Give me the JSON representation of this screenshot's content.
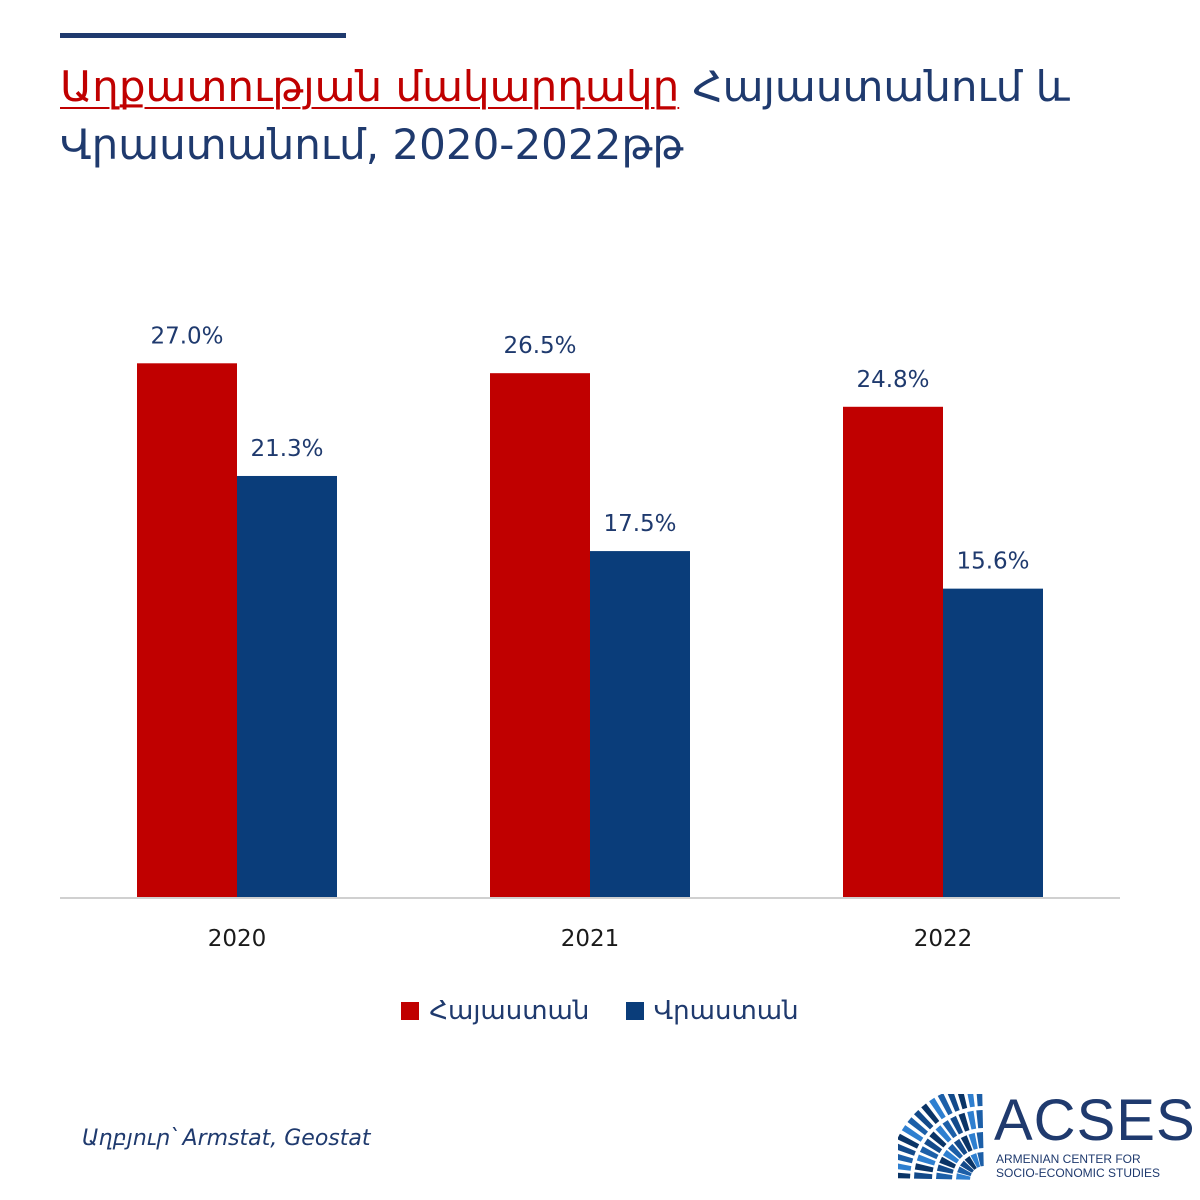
{
  "header": {
    "title_highlight": "Աղքատության մակարդակը",
    "title_rest": " Հայաստանում և Վրաստանում, 2020-2022թթ"
  },
  "colors": {
    "armenia": "#c00000",
    "georgia": "#0a3d7a",
    "text": "#1f3a6e"
  },
  "chart_data": {
    "type": "bar",
    "categories": [
      "2020",
      "2021",
      "2022"
    ],
    "series": [
      {
        "name": "Հայաստան",
        "values": [
          27.0,
          26.5,
          24.8
        ],
        "labels": [
          "27.0%",
          "26.5%",
          "24.8%"
        ]
      },
      {
        "name": "Վրաստան",
        "values": [
          21.3,
          17.5,
          15.6
        ],
        "labels": [
          "21.3%",
          "17.5%",
          "15.6%"
        ]
      }
    ],
    "ylim": [
      0,
      30
    ],
    "grid": false,
    "legend": "bottom"
  },
  "legend": {
    "items": [
      "Հայաստան",
      "Վրաստան"
    ]
  },
  "footer": {
    "source": "Աղբյուր՝ Armstat, Geostat",
    "logo_word": "ACSES",
    "logo_sub_1": "ARMENIAN CENTER FOR",
    "logo_sub_2": "SOCIO-ECONOMIC STUDIES"
  }
}
